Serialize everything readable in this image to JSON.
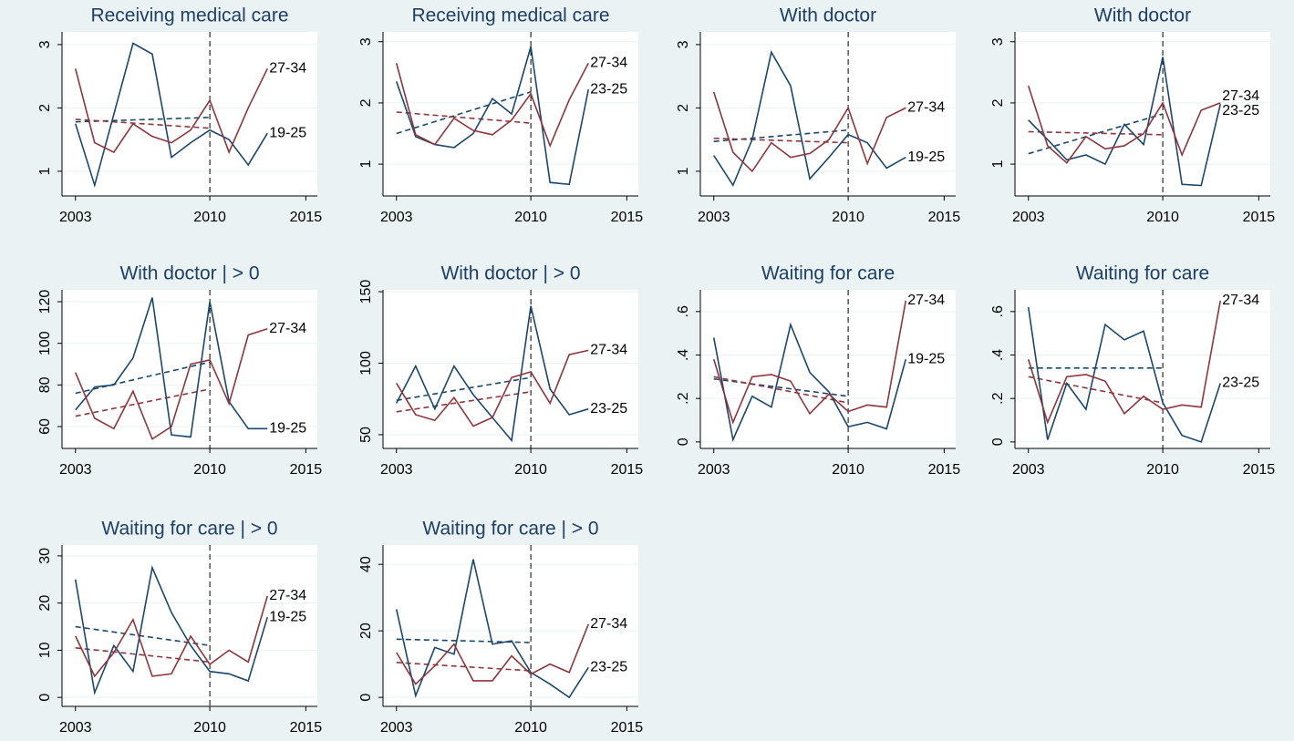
{
  "chart_data": [
    {
      "type": "line",
      "title": "Receiving medical care",
      "x": [
        2003,
        2004,
        2005,
        2006,
        2007,
        2008,
        2009,
        2010,
        2011,
        2012,
        2013
      ],
      "xlim": [
        2002.3,
        2015.6
      ],
      "xticks": [
        2003,
        2010,
        2015
      ],
      "ylim": [
        0.61,
        3.2
      ],
      "yticks": [
        1,
        2,
        3
      ],
      "vline": 2010,
      "trend_x": [
        2003,
        2010
      ],
      "series": [
        {
          "name": "19-25",
          "color": "#1a476f",
          "values": [
            1.75,
            0.78,
            1.9,
            3.02,
            2.85,
            1.22,
            1.45,
            1.65,
            1.5,
            1.1,
            1.6
          ]
        },
        {
          "name": "27-34",
          "color": "#90353b",
          "values": [
            2.62,
            1.45,
            1.3,
            1.75,
            1.55,
            1.45,
            1.65,
            2.12,
            1.3,
            2.0,
            2.62
          ]
        }
      ],
      "trends": [
        {
          "color": "#1a476f",
          "values": [
            1.78,
            1.85
          ]
        },
        {
          "color": "#90353b",
          "values": [
            1.82,
            1.68
          ]
        }
      ]
    },
    {
      "type": "line",
      "title": "Receiving medical care",
      "x": [
        2003,
        2004,
        2005,
        2006,
        2007,
        2008,
        2009,
        2010,
        2011,
        2012,
        2013
      ],
      "xlim": [
        2002.3,
        2015.6
      ],
      "xticks": [
        2003,
        2010,
        2015
      ],
      "ylim": [
        0.48,
        3.16
      ],
      "yticks": [
        1,
        2,
        3
      ],
      "vline": 2010,
      "trend_x": [
        2003,
        2010
      ],
      "series": [
        {
          "name": "23-25",
          "color": "#1a476f",
          "values": [
            2.35,
            1.45,
            1.32,
            1.27,
            1.5,
            2.07,
            1.82,
            2.92,
            0.7,
            0.67,
            2.22
          ]
        },
        {
          "name": "27-34",
          "color": "#90353b",
          "values": [
            2.65,
            1.48,
            1.32,
            1.75,
            1.55,
            1.48,
            1.72,
            2.15,
            1.3,
            2.05,
            2.65
          ]
        }
      ],
      "trends": [
        {
          "color": "#1a476f",
          "values": [
            1.5,
            2.18
          ]
        },
        {
          "color": "#90353b",
          "values": [
            1.85,
            1.67
          ]
        }
      ]
    },
    {
      "type": "line",
      "title": "With doctor",
      "x": [
        2003,
        2004,
        2005,
        2006,
        2007,
        2008,
        2009,
        2010,
        2011,
        2012,
        2013
      ],
      "xlim": [
        2002.3,
        2015.6
      ],
      "xticks": [
        2003,
        2010,
        2015
      ],
      "ylim": [
        0.61,
        3.2
      ],
      "yticks": [
        1,
        2,
        3
      ],
      "vline": 2010,
      "trend_x": [
        2003,
        2010
      ],
      "series": [
        {
          "name": "19-25",
          "color": "#1a476f",
          "values": [
            1.25,
            0.78,
            1.5,
            2.88,
            2.35,
            0.88,
            1.22,
            1.58,
            1.45,
            1.05,
            1.22
          ]
        },
        {
          "name": "27-34",
          "color": "#90353b",
          "values": [
            2.25,
            1.3,
            1.0,
            1.45,
            1.22,
            1.28,
            1.5,
            2.0,
            1.12,
            1.85,
            2.0
          ]
        }
      ],
      "trends": [
        {
          "color": "#1a476f",
          "values": [
            1.47,
            1.65
          ]
        },
        {
          "color": "#90353b",
          "values": [
            1.52,
            1.45
          ]
        }
      ]
    },
    {
      "type": "line",
      "title": "With doctor",
      "x": [
        2003,
        2004,
        2005,
        2006,
        2007,
        2008,
        2009,
        2010,
        2011,
        2012,
        2013
      ],
      "xlim": [
        2002.3,
        2015.6
      ],
      "xticks": [
        2003,
        2010,
        2015
      ],
      "ylim": [
        0.48,
        3.16
      ],
      "yticks": [
        1,
        2,
        3
      ],
      "vline": 2010,
      "trend_x": [
        2003,
        2010
      ],
      "series": [
        {
          "name": "23-25",
          "color": "#1a476f",
          "values": [
            1.72,
            1.4,
            1.07,
            1.15,
            1.0,
            1.65,
            1.32,
            2.75,
            0.67,
            0.65,
            1.98
          ]
        },
        {
          "name": "27-34",
          "color": "#90353b",
          "values": [
            2.28,
            1.3,
            1.02,
            1.45,
            1.25,
            1.3,
            1.5,
            2.0,
            1.15,
            1.88,
            2.0
          ]
        }
      ],
      "trends": [
        {
          "color": "#1a476f",
          "values": [
            1.17,
            1.82
          ]
        },
        {
          "color": "#90353b",
          "values": [
            1.53,
            1.48
          ]
        }
      ]
    },
    {
      "type": "line",
      "title": "With doctor | > 0",
      "x": [
        2003,
        2004,
        2005,
        2006,
        2007,
        2008,
        2009,
        2010,
        2011,
        2012,
        2013
      ],
      "xlim": [
        2002.3,
        2015.6
      ],
      "xticks": [
        2003,
        2010,
        2015
      ],
      "ylim": [
        49.5,
        125.7
      ],
      "yticks": [
        60,
        80,
        100,
        120
      ],
      "vline": 2010,
      "trend_x": [
        2003,
        2010
      ],
      "series": [
        {
          "name": "19-25",
          "color": "#1a476f",
          "values": [
            68,
            79,
            80,
            93,
            122,
            56,
            55,
            120,
            72,
            59,
            59
          ]
        },
        {
          "name": "27-34",
          "color": "#90353b",
          "values": [
            86,
            64,
            59,
            77,
            54,
            60,
            90,
            92,
            71,
            104,
            107
          ]
        }
      ],
      "trends": [
        {
          "color": "#1a476f",
          "values": [
            76,
            91
          ]
        },
        {
          "color": "#90353b",
          "values": [
            65,
            78
          ]
        }
      ]
    },
    {
      "type": "line",
      "title": "With doctor | > 0",
      "x": [
        2003,
        2004,
        2005,
        2006,
        2007,
        2008,
        2009,
        2010,
        2011,
        2012,
        2013
      ],
      "xlim": [
        2002.3,
        2015.6
      ],
      "xticks": [
        2003,
        2010,
        2015
      ],
      "ylim": [
        40.4,
        151.3
      ],
      "yticks": [
        50,
        100,
        150
      ],
      "vline": 2010,
      "trend_x": [
        2003,
        2010
      ],
      "series": [
        {
          "name": "23-25",
          "color": "#1a476f",
          "values": [
            72,
            98,
            68,
            98,
            78,
            62,
            46,
            140,
            82,
            64,
            68
          ]
        },
        {
          "name": "27-34",
          "color": "#90353b",
          "values": [
            86,
            64,
            60,
            76,
            56,
            62,
            90,
            94,
            72,
            106,
            109
          ]
        }
      ],
      "trends": [
        {
          "color": "#1a476f",
          "values": [
            74,
            90
          ]
        },
        {
          "color": "#90353b",
          "values": [
            66,
            80
          ]
        }
      ]
    },
    {
      "type": "line",
      "title": "Waiting for care",
      "x": [
        2003,
        2004,
        2005,
        2006,
        2007,
        2008,
        2009,
        2010,
        2011,
        2012,
        2013
      ],
      "xlim": [
        2002.3,
        2015.6
      ],
      "xticks": [
        2003,
        2010,
        2015
      ],
      "ylim": [
        -0.03,
        0.7
      ],
      "yticks": [
        0,
        {
          "value": 0.2,
          "label": ".2"
        },
        {
          "value": 0.4,
          "label": ".4"
        },
        {
          "value": 0.6,
          "label": ".6"
        }
      ],
      "vline": 2010,
      "trend_x": [
        2003,
        2010
      ],
      "series": [
        {
          "name": "19-25",
          "color": "#1a476f",
          "values": [
            0.48,
            0.01,
            0.21,
            0.16,
            0.54,
            0.32,
            0.23,
            0.07,
            0.09,
            0.06,
            0.38
          ]
        },
        {
          "name": "27-34",
          "color": "#90353b",
          "values": [
            0.38,
            0.09,
            0.3,
            0.31,
            0.28,
            0.13,
            0.22,
            0.14,
            0.17,
            0.16,
            0.65
          ]
        }
      ],
      "trends": [
        {
          "color": "#1a476f",
          "values": [
            0.29,
            0.21
          ]
        },
        {
          "color": "#90353b",
          "values": [
            0.3,
            0.18
          ]
        }
      ]
    },
    {
      "type": "line",
      "title": "Waiting for care",
      "x": [
        2003,
        2004,
        2005,
        2006,
        2007,
        2008,
        2009,
        2010,
        2011,
        2012,
        2013
      ],
      "xlim": [
        2002.3,
        2015.6
      ],
      "xticks": [
        2003,
        2010,
        2015
      ],
      "ylim": [
        -0.03,
        0.7
      ],
      "yticks": [
        0,
        {
          "value": 0.2,
          "label": ".2"
        },
        {
          "value": 0.4,
          "label": ".4"
        },
        {
          "value": 0.6,
          "label": ".6"
        }
      ],
      "vline": 2010,
      "trend_x": [
        2003,
        2010
      ],
      "series": [
        {
          "name": "23-25",
          "color": "#1a476f",
          "values": [
            0.62,
            0.01,
            0.27,
            0.15,
            0.54,
            0.47,
            0.51,
            0.18,
            0.03,
            0.0,
            0.27
          ]
        },
        {
          "name": "27-34",
          "color": "#90353b",
          "values": [
            0.38,
            0.09,
            0.3,
            0.31,
            0.28,
            0.13,
            0.21,
            0.15,
            0.17,
            0.16,
            0.65
          ]
        }
      ],
      "trends": [
        {
          "color": "#1a476f",
          "values": [
            0.34,
            0.34
          ]
        },
        {
          "color": "#90353b",
          "values": [
            0.3,
            0.18
          ]
        }
      ]
    },
    {
      "type": "line",
      "title": "Waiting for care | > 0",
      "x": [
        2003,
        2004,
        2005,
        2006,
        2007,
        2008,
        2009,
        2010,
        2011,
        2012,
        2013
      ],
      "xlim": [
        2002.3,
        2015.6
      ],
      "xticks": [
        2003,
        2010,
        2015
      ],
      "ylim": [
        -1.9,
        32.3
      ],
      "yticks": [
        0,
        10,
        20,
        30
      ],
      "vline": 2010,
      "trend_x": [
        2003,
        2010
      ],
      "series": [
        {
          "name": "19-25",
          "color": "#1a476f",
          "values": [
            25,
            1,
            11,
            5.5,
            27.5,
            18,
            11,
            5.5,
            5,
            3.5,
            17
          ]
        },
        {
          "name": "27-34",
          "color": "#90353b",
          "values": [
            13,
            4.5,
            9.5,
            16.5,
            4.5,
            5,
            13,
            7,
            10,
            7.5,
            21.5
          ]
        }
      ],
      "trends": [
        {
          "color": "#1a476f",
          "values": [
            15,
            11
          ]
        },
        {
          "color": "#90353b",
          "values": [
            10.5,
            7.5
          ]
        }
      ]
    },
    {
      "type": "line",
      "title": "Waiting for care | > 0",
      "x": [
        2003,
        2004,
        2005,
        2006,
        2007,
        2008,
        2009,
        2010,
        2011,
        2012,
        2013
      ],
      "xlim": [
        2002.3,
        2015.6
      ],
      "xticks": [
        2003,
        2010,
        2015
      ],
      "ylim": [
        -2.7,
        45.8
      ],
      "yticks": [
        0,
        20,
        40
      ],
      "vline": 2010,
      "trend_x": [
        2003,
        2010
      ],
      "series": [
        {
          "name": "23-25",
          "color": "#1a476f",
          "values": [
            26.5,
            0.5,
            15,
            13,
            41.5,
            16,
            17,
            7.5,
            4,
            0,
            9
          ]
        },
        {
          "name": "27-34",
          "color": "#90353b",
          "values": [
            13.5,
            4,
            9.5,
            16,
            5,
            5,
            12.5,
            7,
            10,
            7.5,
            22
          ]
        }
      ],
      "trends": [
        {
          "color": "#1a476f",
          "values": [
            17.5,
            16.5
          ]
        },
        {
          "color": "#90353b",
          "values": [
            10.5,
            8
          ]
        }
      ]
    }
  ]
}
